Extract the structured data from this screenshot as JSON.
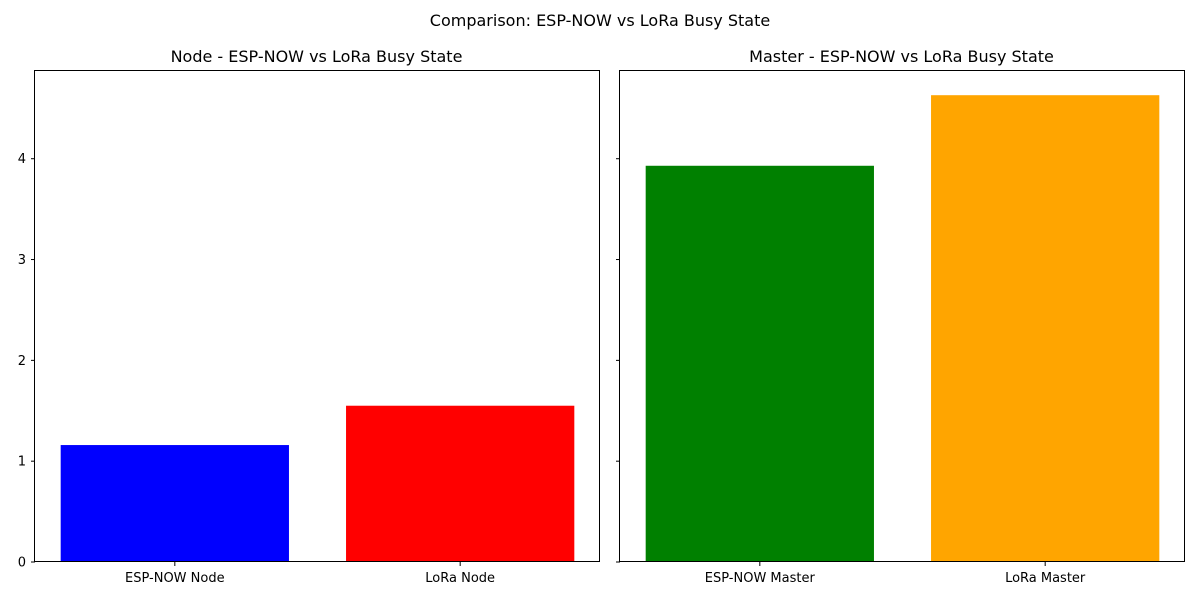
{
  "figure": {
    "suptitle": "Comparison: ESP-NOW vs LoRa Busy State"
  },
  "chart_data": [
    {
      "type": "bar",
      "title": "Node - ESP-NOW vs LoRa Busy State",
      "xlabel": "",
      "ylabel": "",
      "categories": [
        "ESP-NOW Node",
        "LoRa Node"
      ],
      "values": [
        1.16,
        1.55
      ],
      "colors": [
        "#0000ff",
        "#ff0000"
      ],
      "ylim": [
        0,
        4.87
      ],
      "yticks": [
        0,
        1,
        2,
        3,
        4
      ],
      "show_ytick_labels": true,
      "grid": false,
      "legend": "none"
    },
    {
      "type": "bar",
      "title": "Master - ESP-NOW vs LoRa Busy State",
      "xlabel": "",
      "ylabel": "",
      "categories": [
        "ESP-NOW Master",
        "LoRa Master"
      ],
      "values": [
        3.93,
        4.63
      ],
      "colors": [
        "#008000",
        "#ffa500"
      ],
      "ylim": [
        0,
        4.87
      ],
      "yticks": [
        0,
        1,
        2,
        3,
        4
      ],
      "show_ytick_labels": false,
      "grid": false,
      "legend": "none"
    }
  ]
}
